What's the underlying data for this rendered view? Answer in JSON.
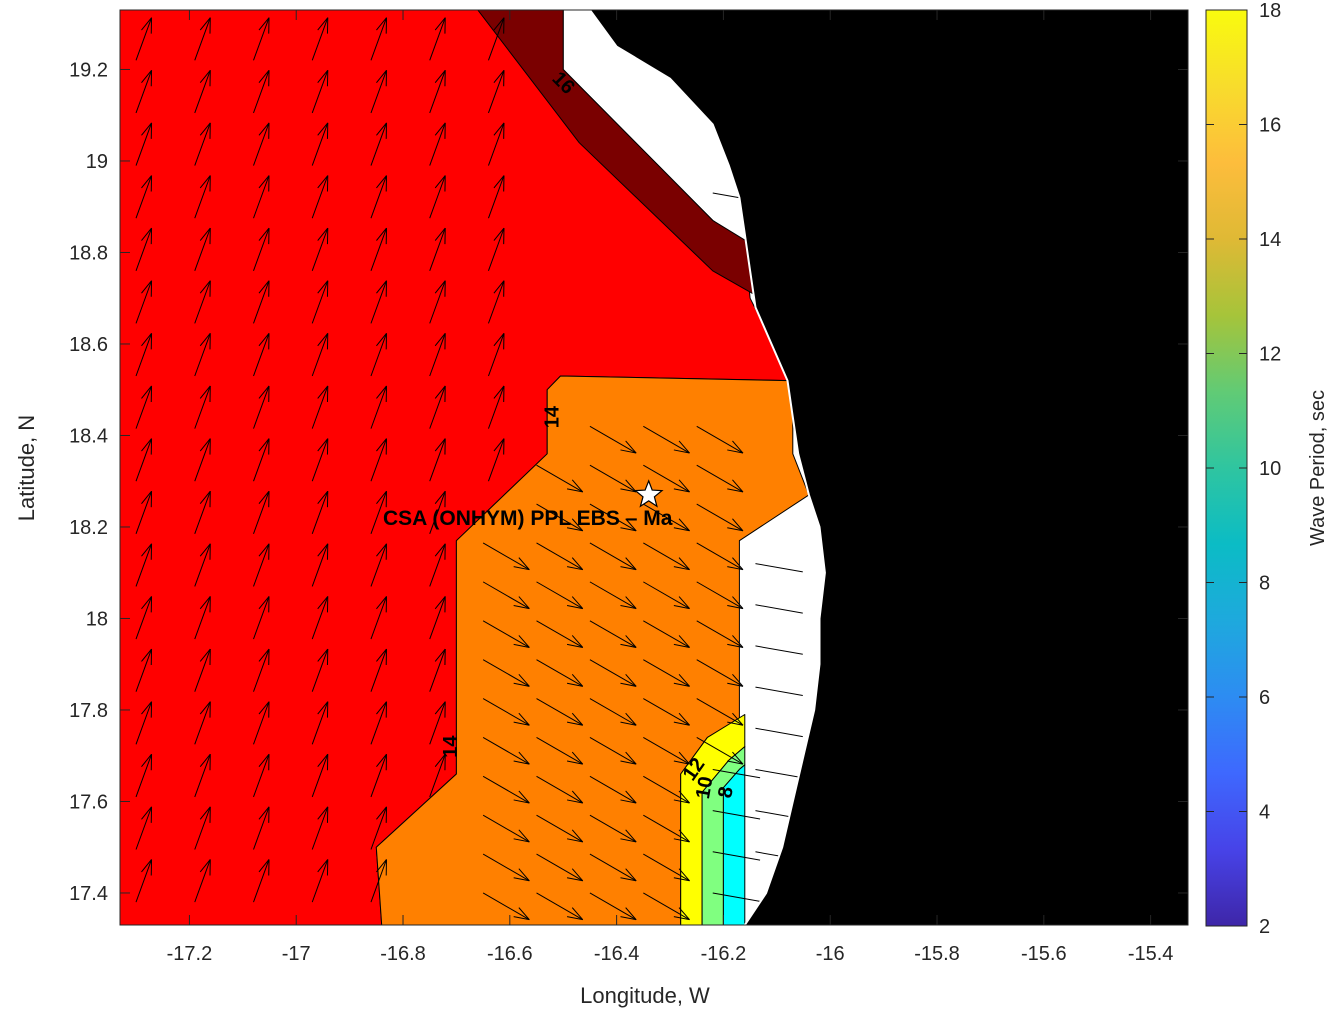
{
  "chart_data": {
    "type": "contour",
    "xlabel": "Longitude, W",
    "ylabel": "Latitude, N",
    "xlim": [
      -17.33,
      -15.33
    ],
    "ylim": [
      17.33,
      19.33
    ],
    "x_ticks": [
      -17.2,
      -17,
      -16.8,
      -16.6,
      -16.4,
      -16.2,
      -16,
      -15.8,
      -15.6,
      -15.4
    ],
    "x_tick_labels": [
      "-17.2",
      "-17",
      "-16.8",
      "-16.6",
      "-16.4",
      "-16.2",
      "-16",
      "-15.8",
      "-15.6",
      "-15.4"
    ],
    "y_ticks": [
      17.4,
      17.6,
      17.8,
      18,
      18.2,
      18.4,
      18.6,
      18.8,
      19,
      19.2
    ],
    "y_tick_labels": [
      "17.4",
      "17.6",
      "17.8",
      "18",
      "18.2",
      "18.4",
      "18.6",
      "18.8",
      "19",
      "19.2"
    ],
    "colorbar": {
      "label": "Wave Period, sec",
      "range": [
        2,
        18
      ],
      "ticks": [
        2,
        4,
        6,
        8,
        10,
        12,
        14,
        16,
        18
      ],
      "tick_labels": [
        "2",
        "4",
        "6",
        "8",
        "10",
        "12",
        "14",
        "16",
        "18"
      ],
      "colormap": [
        "#3e26a8",
        "#4743e8",
        "#3e68fe",
        "#2d8cf2",
        "#1ea9dd",
        "#0bbcc5",
        "#2fc5a0",
        "#61cb75",
        "#a6c43a",
        "#dfb935",
        "#fdbd3c",
        "#f8dc2c",
        "#f9fb0e"
      ]
    },
    "contour_levels": [
      8,
      10,
      12,
      14,
      16
    ],
    "contour_labels": [
      {
        "text": "16",
        "lon": -16.5,
        "lat": 19.17,
        "angle": 45
      },
      {
        "text": "14",
        "lon": -16.52,
        "lat": 18.44,
        "angle": -90
      },
      {
        "text": "14",
        "lon": -16.71,
        "lat": 17.72,
        "angle": -90
      },
      {
        "text": "12",
        "lon": -16.255,
        "lat": 17.67,
        "angle": -55
      },
      {
        "text": "10",
        "lon": -16.235,
        "lat": 17.63,
        "angle": -80
      },
      {
        "text": "8",
        "lon": -16.195,
        "lat": 17.62,
        "angle": -80
      }
    ],
    "regions": [
      {
        "name": "red",
        "color": "#ff0000",
        "polygon": [
          [
            -17.33,
            17.33
          ],
          [
            -16.84,
            17.33
          ],
          [
            -16.85,
            17.5
          ],
          [
            -16.7,
            17.66
          ],
          [
            -16.7,
            18.17
          ],
          [
            -16.53,
            18.36
          ],
          [
            -16.53,
            18.5
          ],
          [
            -16.505,
            18.53
          ],
          [
            -16.07,
            18.52
          ],
          [
            -16.12,
            18.63
          ],
          [
            -16.15,
            18.7
          ],
          [
            -16.16,
            18.82
          ],
          [
            -16.22,
            18.87
          ],
          [
            -16.5,
            19.2
          ],
          [
            -16.5,
            19.33
          ],
          [
            -17.33,
            19.33
          ]
        ]
      },
      {
        "name": "dark-red",
        "color": "#7a0000",
        "polygon": [
          [
            -16.66,
            19.33
          ],
          [
            -16.5,
            19.33
          ],
          [
            -16.5,
            19.2
          ],
          [
            -16.22,
            18.87
          ],
          [
            -16.15,
            18.82
          ],
          [
            -16.13,
            18.7
          ],
          [
            -16.22,
            18.76
          ],
          [
            -16.47,
            19.04
          ]
        ]
      },
      {
        "name": "orange",
        "color": "#ff8000",
        "polygon": [
          [
            -16.84,
            17.33
          ],
          [
            -16.28,
            17.33
          ],
          [
            -16.28,
            17.66
          ],
          [
            -16.23,
            17.74
          ],
          [
            -16.17,
            17.78
          ],
          [
            -16.17,
            18.17
          ],
          [
            -16.04,
            18.27
          ],
          [
            -16.07,
            18.36
          ],
          [
            -16.07,
            18.44
          ],
          [
            -16.08,
            18.52
          ],
          [
            -16.505,
            18.53
          ],
          [
            -16.53,
            18.5
          ],
          [
            -16.53,
            18.36
          ],
          [
            -16.7,
            18.17
          ],
          [
            -16.7,
            17.66
          ],
          [
            -16.85,
            17.5
          ]
        ]
      },
      {
        "name": "yellow",
        "color": "#ffff00",
        "polygon": [
          [
            -16.28,
            17.33
          ],
          [
            -16.24,
            17.33
          ],
          [
            -16.24,
            17.62
          ],
          [
            -16.19,
            17.69
          ],
          [
            -16.16,
            17.72
          ],
          [
            -16.16,
            17.79
          ],
          [
            -16.23,
            17.74
          ],
          [
            -16.28,
            17.66
          ]
        ]
      },
      {
        "name": "green",
        "color": "#80ff80",
        "polygon": [
          [
            -16.24,
            17.33
          ],
          [
            -16.2,
            17.33
          ],
          [
            -16.2,
            17.63
          ],
          [
            -16.17,
            17.67
          ],
          [
            -16.16,
            17.68
          ],
          [
            -16.16,
            17.72
          ],
          [
            -16.19,
            17.69
          ],
          [
            -16.24,
            17.62
          ]
        ]
      },
      {
        "name": "cyan",
        "color": "#00ffff",
        "polygon": [
          [
            -16.2,
            17.33
          ],
          [
            -16.16,
            17.33
          ],
          [
            -16.16,
            17.68
          ],
          [
            -16.17,
            17.67
          ],
          [
            -16.2,
            17.63
          ]
        ]
      }
    ],
    "land": {
      "color": "#000000",
      "coast": [
        [
          -16.16,
          17.33
        ],
        [
          -16.12,
          17.4
        ],
        [
          -16.09,
          17.5
        ],
        [
          -16.07,
          17.6
        ],
        [
          -16.05,
          17.7
        ],
        [
          -16.03,
          17.8
        ],
        [
          -16.02,
          17.9
        ],
        [
          -16.02,
          18
        ],
        [
          -16.01,
          18.1
        ],
        [
          -16.02,
          18.2
        ],
        [
          -16.04,
          18.27
        ],
        [
          -16.06,
          18.36
        ],
        [
          -16.07,
          18.44
        ],
        [
          -16.08,
          18.52
        ],
        [
          -16.11,
          18.6
        ],
        [
          -16.14,
          18.68
        ],
        [
          -16.15,
          18.76
        ],
        [
          -16.16,
          18.84
        ],
        [
          -16.17,
          18.92
        ],
        [
          -16.19,
          18.99
        ],
        [
          -16.22,
          19.08
        ],
        [
          -16.3,
          19.18
        ],
        [
          -16.4,
          19.25
        ],
        [
          -16.45,
          19.33
        ]
      ]
    },
    "arrows": [
      {
        "region": "red",
        "lon_range": [
          -17.3,
          -16.55
        ],
        "lat_range": [
          17.38,
          19.28
        ],
        "spacing": [
          0.11,
          0.115
        ],
        "direction_deg": 70,
        "length": 0.085
      },
      {
        "region": "orange",
        "lon_range": [
          -16.65,
          -16.2
        ],
        "lat_range": [
          17.4,
          18.5
        ],
        "spacing": [
          0.1,
          0.085
        ],
        "direction_deg": -30,
        "length": 0.1
      },
      {
        "region": "white",
        "lon_range": [
          -16.22,
          -16.08
        ],
        "lat_range": [
          17.4,
          19.25
        ],
        "spacing": [
          0.08,
          0.09
        ],
        "direction_deg": -10,
        "length": 0.09
      }
    ],
    "site_marker": {
      "label": "CSA (ONHYM) PPL EBS  – Ma",
      "lon": -16.34,
      "lat": 18.27
    }
  }
}
